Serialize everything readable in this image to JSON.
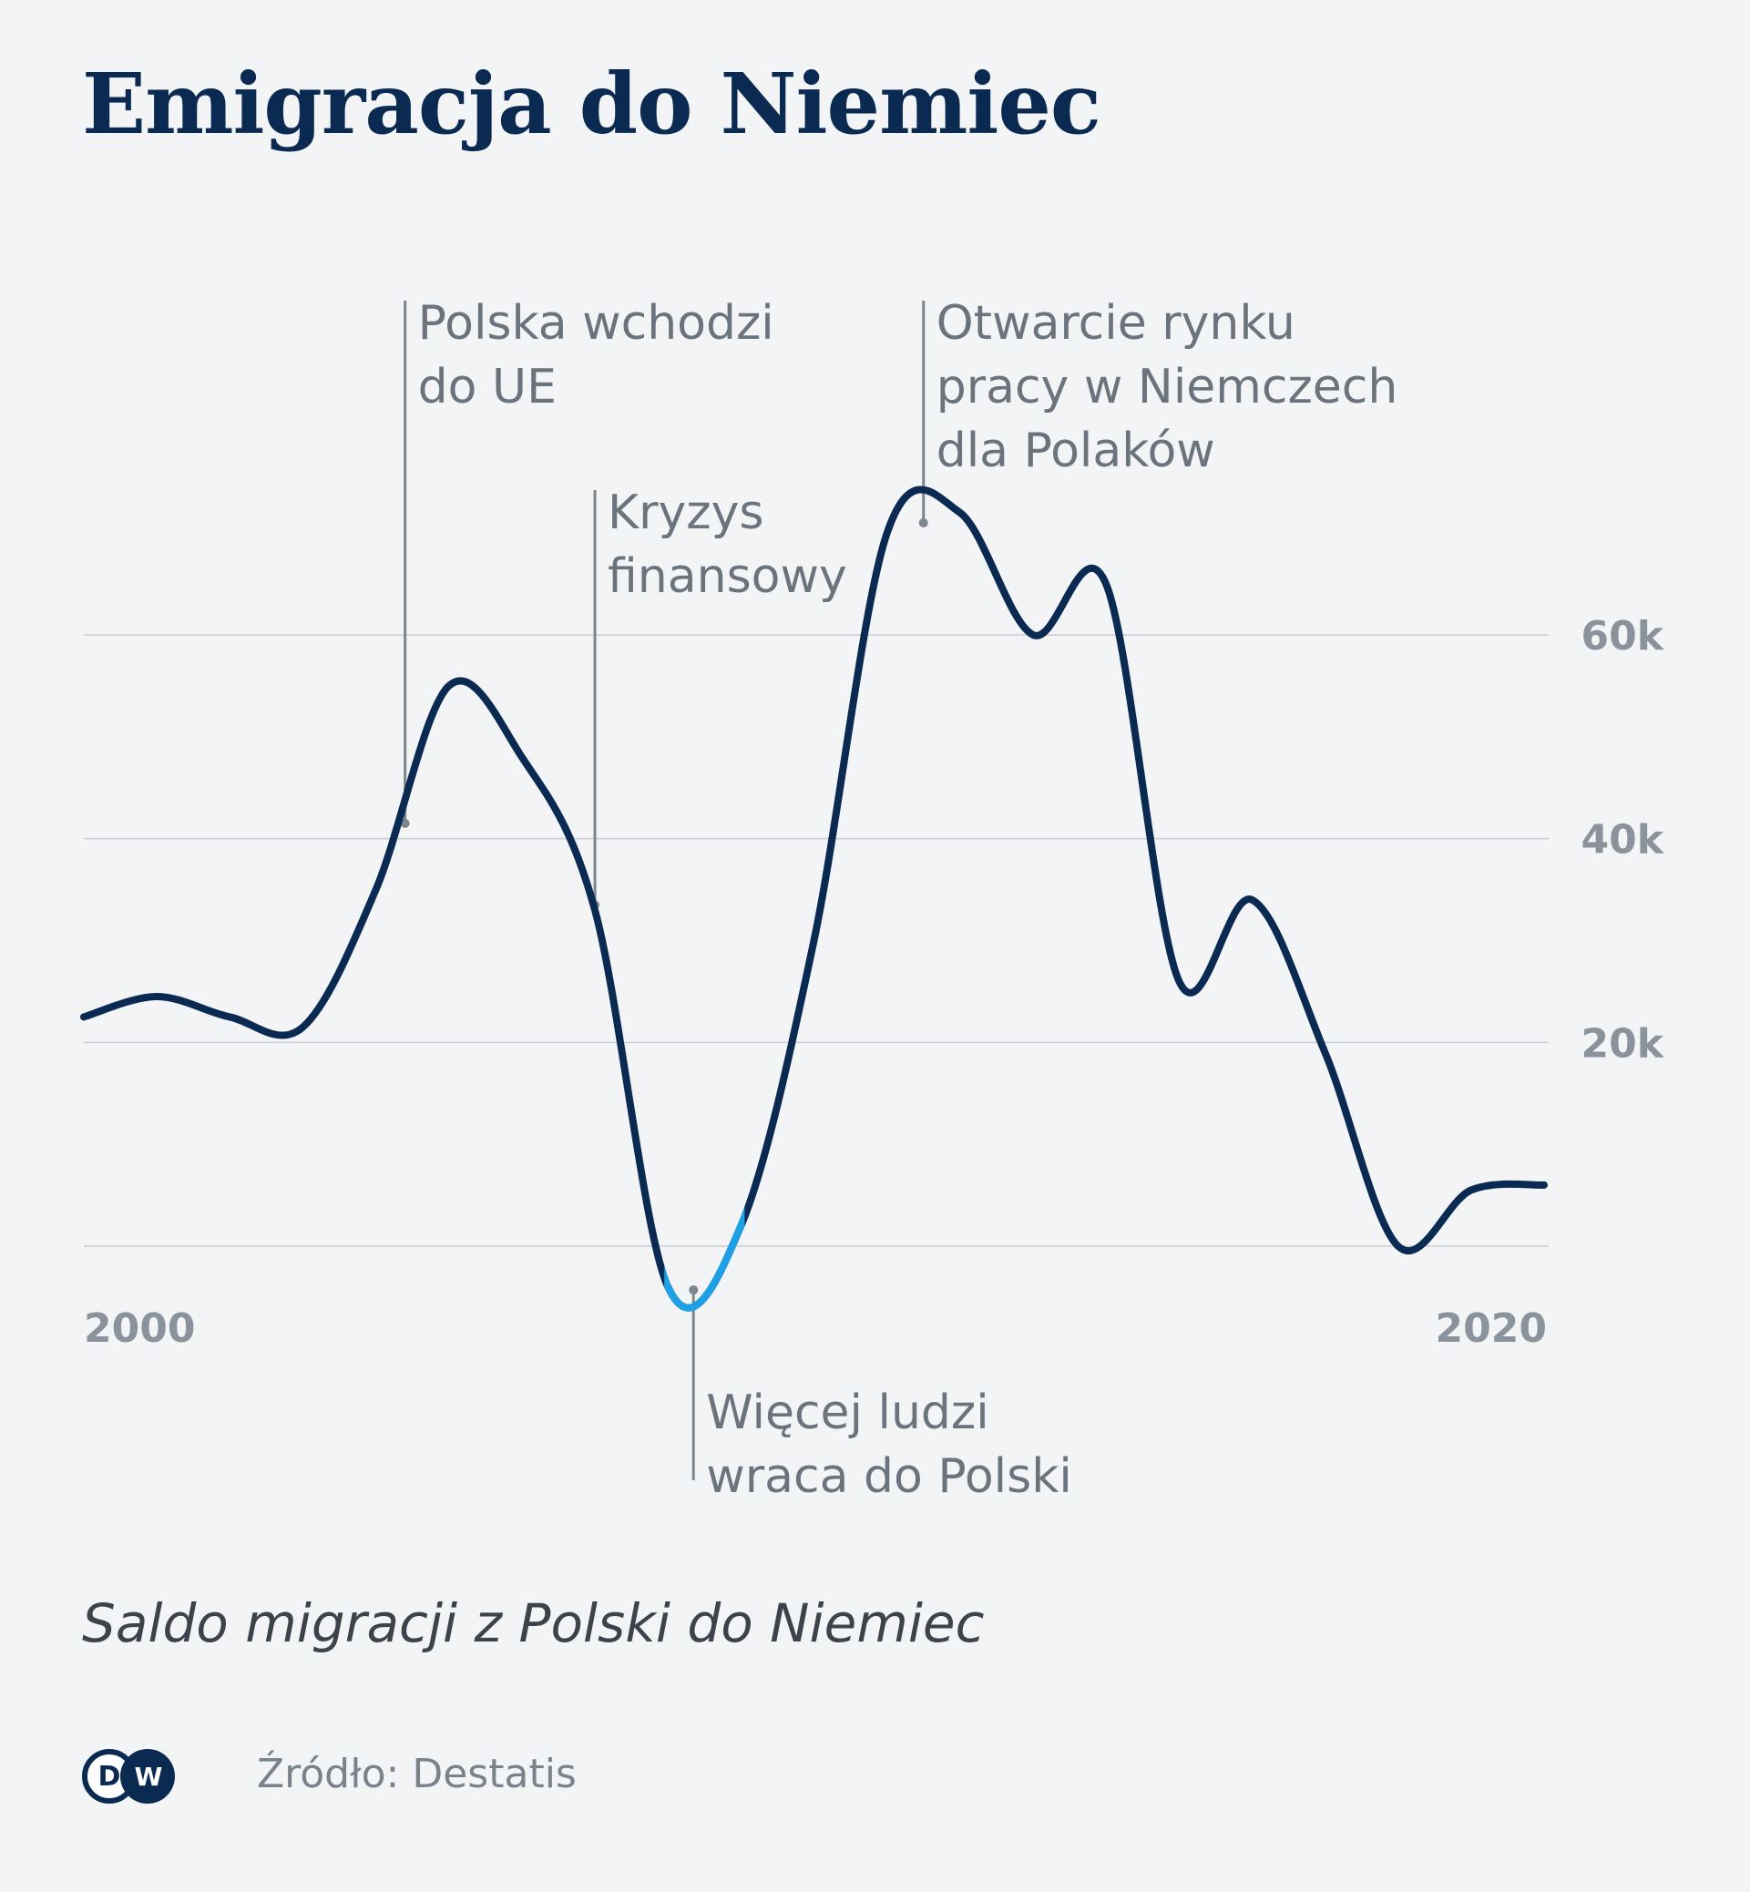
{
  "chart_data": {
    "type": "line",
    "title": "Emigracja do Niemiec",
    "subtitle": "Saldo migracji z Polski do Niemiec",
    "source": "Źródło: Destatis",
    "xlabel": "",
    "ylabel": "",
    "x_tick_labels": [
      {
        "x": 2000,
        "label": "2000"
      },
      {
        "x": 2020,
        "label": "2020"
      }
    ],
    "y_tick_labels": [
      {
        "y": 20000,
        "label": "20k"
      },
      {
        "y": 40000,
        "label": "40k"
      },
      {
        "y": 60000,
        "label": "60k"
      }
    ],
    "ylim": [
      0,
      60000
    ],
    "grid": true,
    "series": [
      {
        "x": [
          2000,
          2001,
          2002,
          2003,
          2004,
          2005,
          2006,
          2007,
          2008,
          2009,
          2010,
          2011,
          2012,
          2013,
          2014,
          2015,
          2016,
          2017,
          2018,
          2019,
          2020
        ],
        "y": [
          22500,
          24500,
          22500,
          21500,
          35000,
          55000,
          48000,
          33000,
          -4000,
          2000,
          30000,
          70000,
          72000,
          60000,
          65000,
          26000,
          34000,
          19000,
          0,
          5500,
          6000
        ],
        "color": "#0b2a52"
      }
    ],
    "highlight_segment": {
      "x_from": 2007.95,
      "x_to": 2009.05,
      "color": "#1ea0e6"
    },
    "annotations": [
      {
        "x": 2004.4,
        "y": 41500,
        "text_lines": [
          "Polska wchodzi",
          "do UE"
        ],
        "position": "above"
      },
      {
        "x": 2007.0,
        "y": 33500,
        "text_lines": [
          "Kryzys",
          "finansowy"
        ],
        "position": "above"
      },
      {
        "x": 2008.35,
        "y": -4300,
        "text_lines": [
          "Więcej ludzi",
          "wraca do Polski"
        ],
        "position": "below"
      },
      {
        "x": 2011.5,
        "y": 71000,
        "text_lines": [
          "Otwarcie rynku",
          "pracy w Niemczech",
          "dla Polaków"
        ],
        "position": "above"
      }
    ]
  },
  "colors": {
    "line": "#0b2a52",
    "highlight": "#1ea0e6",
    "background": "#f2f4f6",
    "grid": "#c9ced4"
  },
  "logo": {
    "text": "DW"
  }
}
